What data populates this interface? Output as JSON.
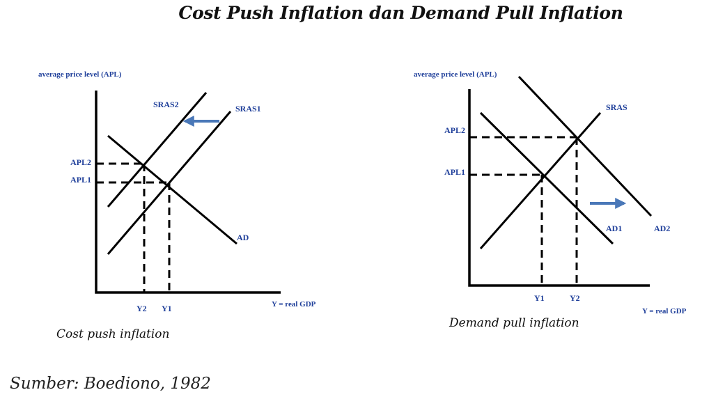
{
  "title": "Cost Push Inflation dan Demand Pull Inflation",
  "left": {
    "y_axis_label": "average price level (APL)",
    "x_axis_label": "Y = real GDP",
    "curves": {
      "sras2": "SRAS2",
      "sras1": "SRAS1",
      "ad": "AD"
    },
    "price_levels": {
      "apl2": "APL2",
      "apl1": "APL1"
    },
    "outputs": {
      "y2": "Y2",
      "y1": "Y1"
    },
    "caption": "Cost  push inflation",
    "arrow_color": "#4a78b8"
  },
  "right": {
    "y_axis_label": "average price level (APL)",
    "x_axis_label": "Y = real GDP",
    "curves": {
      "sras": "SRAS",
      "ad1": "AD1",
      "ad2": "AD2"
    },
    "price_levels": {
      "apl2": "APL2",
      "apl1": "APL1"
    },
    "outputs": {
      "y1": "Y1",
      "y2": "Y2"
    },
    "caption": "Demand pull inflation",
    "arrow_color": "#4a78b8"
  },
  "source": "Sumber: Boediono, 1982"
}
